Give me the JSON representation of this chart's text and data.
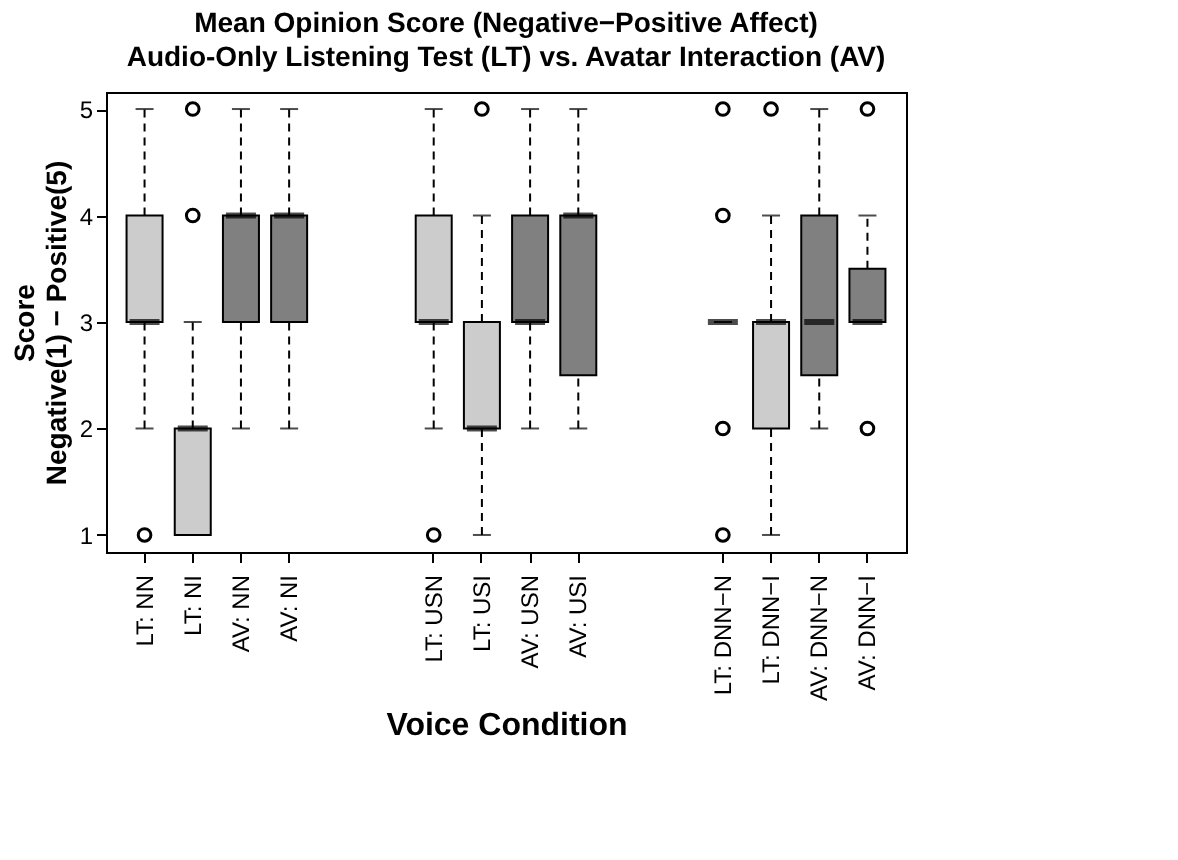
{
  "chart_data": {
    "type": "box",
    "title": "Mean Opinion Score (Negative−Positive Affect)",
    "subtitle": "Audio-Only Listening Test (LT) vs. Avatar Interaction (AV)",
    "xlabel": "Voice Condition",
    "ylabel": "Score\nNegative(1) − Positive(5)",
    "categories": [
      "LT: NN",
      "LT: NI",
      "AV: NN",
      "AV: NI",
      null,
      null,
      "LT: USN",
      "LT: USI",
      "AV: USN",
      "AV: USI",
      null,
      null,
      "LT: DNN−N",
      "LT: DNN−I",
      "AV: DNN−N",
      "AV: DNN−I"
    ],
    "colors": [
      "#cccccc",
      "#cccccc",
      "#808080",
      "#808080",
      null,
      null,
      "#cccccc",
      "#cccccc",
      "#808080",
      "#808080",
      null,
      null,
      null,
      "#cccccc",
      "#808080",
      "#808080"
    ],
    "boxes": [
      {
        "low": 2,
        "q1": 3,
        "median": 3,
        "q3": 4,
        "high": 5,
        "outliers": [
          1
        ]
      },
      {
        "low": 1,
        "q1": 1,
        "median": 2,
        "q3": 2,
        "high": 3,
        "outliers": [
          4,
          5
        ]
      },
      {
        "low": 2,
        "q1": 3,
        "median": 4,
        "q3": 4,
        "high": 5
      },
      {
        "low": 2,
        "q1": 3,
        "median": 4,
        "q3": 4,
        "high": 5
      },
      null,
      null,
      {
        "low": 2,
        "q1": 3,
        "median": 3,
        "q3": 4,
        "high": 5,
        "outliers": [
          1
        ]
      },
      {
        "low": 1,
        "q1": 2,
        "median": 2,
        "q3": 3,
        "high": 4,
        "outliers": [
          5
        ]
      },
      {
        "low": 2,
        "q1": 3,
        "median": 3,
        "q3": 4,
        "high": 5
      },
      {
        "low": 2,
        "q1": 2.5,
        "median": 4,
        "q3": 4,
        "high": 5
      },
      null,
      null,
      {
        "low": 3,
        "q1": 3,
        "median": 3,
        "q3": 3,
        "high": 3,
        "outliers": [
          1,
          2,
          4,
          5
        ]
      },
      {
        "low": 1,
        "q1": 2,
        "median": 3,
        "q3": 3,
        "high": 4,
        "outliers": [
          5
        ]
      },
      {
        "low": 2,
        "q1": 2.5,
        "median": 3,
        "q3": 4,
        "high": 5
      },
      {
        "low": 3,
        "q1": 3,
        "median": 3,
        "q3": 3.5,
        "high": 4,
        "outliers": [
          2,
          5
        ]
      }
    ],
    "ylim": [
      0.84,
      5.16
    ],
    "yticks": [
      1,
      2,
      3,
      4,
      5
    ],
    "grid": false
  }
}
